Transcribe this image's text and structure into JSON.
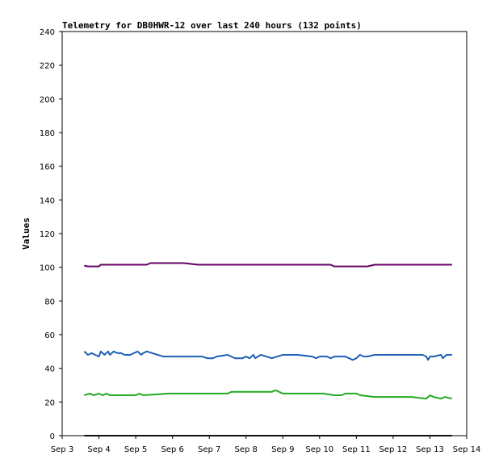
{
  "chart_data": {
    "type": "line",
    "title": "Telemetry for DB0HWR-12 over last 240 hours (132 points)",
    "xlabel": "",
    "ylabel": "Values",
    "x_ticks": [
      "Sep 3",
      "Sep 4",
      "Sep 5",
      "Sep 6",
      "Sep 7",
      "Sep 8",
      "Sep 9",
      "Sep 10",
      "Sep 11",
      "Sep 12",
      "Sep 13",
      "Sep 14"
    ],
    "xlim": [
      "Sep 3",
      "Sep 14"
    ],
    "y_ticks": [
      0,
      20,
      40,
      60,
      80,
      100,
      120,
      140,
      160,
      180,
      200,
      220,
      240
    ],
    "ylim": [
      0,
      240
    ],
    "grid": false,
    "legend": "none",
    "series": [
      {
        "color": "#660066",
        "points": [
          [
            3.6,
            101
          ],
          [
            3.7,
            100.5
          ],
          [
            4.0,
            100.5
          ],
          [
            4.05,
            101.5
          ],
          [
            5.3,
            101.5
          ],
          [
            5.4,
            102.5
          ],
          [
            6.3,
            102.5
          ],
          [
            6.7,
            101.5
          ],
          [
            10.3,
            101.5
          ],
          [
            10.4,
            100.5
          ],
          [
            11.3,
            100.5
          ],
          [
            11.5,
            101.5
          ],
          [
            13.6,
            101.5
          ]
        ]
      },
      {
        "color": "#1f5fb4",
        "points": [
          [
            3.6,
            50
          ],
          [
            3.7,
            48
          ],
          [
            3.8,
            49
          ],
          [
            3.9,
            48
          ],
          [
            4.0,
            47
          ],
          [
            4.05,
            50
          ],
          [
            4.15,
            48
          ],
          [
            4.25,
            50
          ],
          [
            4.3,
            48
          ],
          [
            4.4,
            50
          ],
          [
            4.5,
            49
          ],
          [
            4.6,
            49
          ],
          [
            4.7,
            48
          ],
          [
            4.85,
            48
          ],
          [
            4.95,
            49
          ],
          [
            5.05,
            50
          ],
          [
            5.15,
            48
          ],
          [
            5.2,
            49
          ],
          [
            5.3,
            50
          ],
          [
            5.45,
            49
          ],
          [
            5.6,
            48
          ],
          [
            5.75,
            47
          ],
          [
            6.8,
            47
          ],
          [
            6.95,
            46
          ],
          [
            7.1,
            46
          ],
          [
            7.2,
            47
          ],
          [
            7.5,
            48
          ],
          [
            7.6,
            47
          ],
          [
            7.7,
            46
          ],
          [
            7.9,
            46
          ],
          [
            8.0,
            47
          ],
          [
            8.1,
            46
          ],
          [
            8.2,
            48
          ],
          [
            8.25,
            46
          ],
          [
            8.4,
            48
          ],
          [
            8.55,
            47
          ],
          [
            8.7,
            46
          ],
          [
            8.85,
            47
          ],
          [
            9.0,
            48
          ],
          [
            9.4,
            48
          ],
          [
            9.8,
            47
          ],
          [
            9.9,
            46
          ],
          [
            10.0,
            47
          ],
          [
            10.2,
            47
          ],
          [
            10.3,
            46
          ],
          [
            10.4,
            47
          ],
          [
            10.7,
            47
          ],
          [
            10.8,
            46
          ],
          [
            10.9,
            45
          ],
          [
            11.0,
            46
          ],
          [
            11.1,
            48
          ],
          [
            11.2,
            47
          ],
          [
            11.3,
            47
          ],
          [
            11.5,
            48
          ],
          [
            12.8,
            48
          ],
          [
            12.9,
            47
          ],
          [
            12.95,
            45
          ],
          [
            13.0,
            47
          ],
          [
            13.1,
            47
          ],
          [
            13.3,
            48
          ],
          [
            13.35,
            46
          ],
          [
            13.45,
            48
          ],
          [
            13.6,
            48
          ]
        ]
      },
      {
        "color": "#22aa22",
        "points": [
          [
            3.6,
            24
          ],
          [
            3.75,
            25
          ],
          [
            3.85,
            24
          ],
          [
            4.0,
            25
          ],
          [
            4.1,
            24
          ],
          [
            4.2,
            25
          ],
          [
            4.3,
            24
          ],
          [
            5.0,
            24
          ],
          [
            5.1,
            25
          ],
          [
            5.2,
            24
          ],
          [
            5.9,
            25
          ],
          [
            7.5,
            25
          ],
          [
            7.6,
            26
          ],
          [
            8.7,
            26
          ],
          [
            8.8,
            27
          ],
          [
            8.9,
            26
          ],
          [
            9.0,
            25
          ],
          [
            9.9,
            25
          ],
          [
            10.1,
            25
          ],
          [
            10.4,
            24
          ],
          [
            10.6,
            24
          ],
          [
            10.7,
            25
          ],
          [
            11.0,
            25
          ],
          [
            11.1,
            24
          ],
          [
            11.5,
            23
          ],
          [
            12.5,
            23
          ],
          [
            12.9,
            22
          ],
          [
            13.0,
            24
          ],
          [
            13.1,
            23
          ],
          [
            13.3,
            22
          ],
          [
            13.4,
            23
          ],
          [
            13.6,
            22
          ]
        ]
      },
      {
        "color": "#111111",
        "points": [
          [
            3.6,
            0
          ],
          [
            13.6,
            0
          ]
        ]
      }
    ]
  }
}
